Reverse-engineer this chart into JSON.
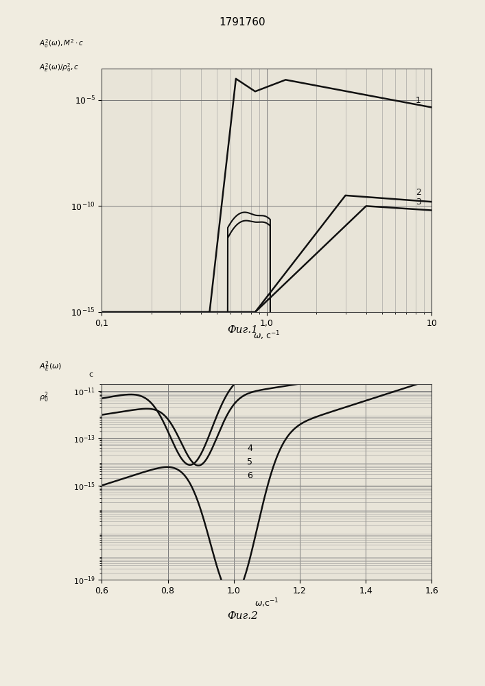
{
  "title": "1791760",
  "fig1_caption": "Фиг.1",
  "fig2_caption": "Фиг.2",
  "bg_color": "#f0ece0",
  "plot_bg": "#e8e4d8",
  "line_color": "#111111",
  "fig1_ylabel_line1": "$A_0^2(\\omega), M^2\\cdot c$",
  "fig1_ylabel_line2": "$A_E^2(\\omega)/\\rho_0^2, c$",
  "fig1_xlabel": "$\\omega$, с$^{-1}$",
  "fig2_ylabel_line1": "$A_E^2(\\omega)$",
  "fig2_ylabel_line2": "$\\rho_0^2$",
  "fig2_ylabel_unit": "с",
  "fig2_xlabel": "$\\omega$,с$^{-1}$"
}
